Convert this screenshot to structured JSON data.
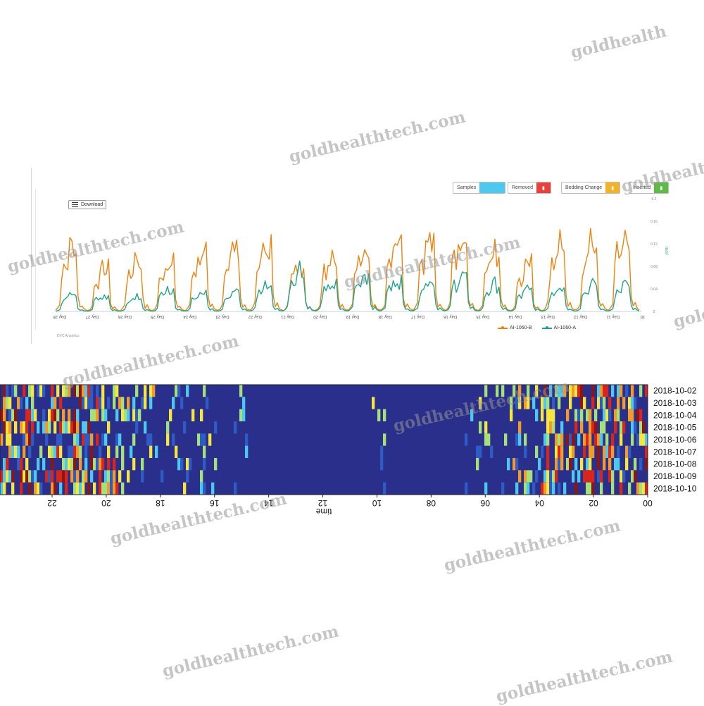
{
  "line_panel": {
    "download_label": "Download",
    "credit": "DVC Analytics",
    "legend": [
      {
        "label": "Inserted",
        "color": "#5dbb46"
      },
      {
        "label": "Bedding Change",
        "color": "#f2b32a"
      },
      {
        "label": "Removed",
        "color": "#e8413c"
      },
      {
        "label": "Samples",
        "color": "#4fc8ef"
      }
    ]
  },
  "chart_data": [
    {
      "type": "line",
      "x_categories": [
        "Day 28",
        "Day 27",
        "Day 26",
        "Day 25",
        "Day 24",
        "Day 23",
        "Day 22",
        "Day 21",
        "Day 20",
        "Day 19",
        "Day 18",
        "Day 17",
        "Day 16",
        "Day 15",
        "Day 14",
        "Day 13",
        "Day 12",
        "Day 11"
      ],
      "x_end_label": "10",
      "y_ticks": [
        "0",
        "0.04",
        "0.08",
        "0.12",
        "0.16",
        "0.2"
      ],
      "ylabel": "m/s²",
      "ylim": [
        0,
        0.2
      ],
      "series": [
        {
          "name": "AI-1060-B",
          "color": "#f0820f",
          "daily_peaks": [
            0.12,
            0.08,
            0.1,
            0.1,
            0.11,
            0.12,
            0.13,
            0.09,
            0.11,
            0.13,
            0.12,
            0.13,
            0.14,
            0.11,
            0.09,
            0.13,
            0.13,
            0.14
          ]
        },
        {
          "name": "AI-1060-A",
          "color": "#1fa58c",
          "daily_peaks": [
            0.03,
            0.03,
            0.03,
            0.04,
            0.04,
            0.04,
            0.05,
            0.08,
            0.05,
            0.07,
            0.06,
            0.06,
            0.07,
            0.05,
            0.04,
            0.05,
            0.05,
            0.05
          ]
        }
      ]
    },
    {
      "type": "heatmap",
      "xlabel": "time",
      "x_tick_labels": [
        "22",
        "20",
        "18",
        "16",
        "14",
        "12",
        "10",
        "08",
        "06",
        "04",
        "02",
        "00"
      ],
      "y_labels": [
        "2018-10-02",
        "2018-10-03",
        "2018-10-04",
        "2018-10-05",
        "2018-10-06",
        "2018-10-07",
        "2018-10-08",
        "2018-10-09",
        "2018-10-10"
      ],
      "colormap": [
        "#2a2f8c",
        "#2f5cc4",
        "#4fc8ef",
        "#a6e07a",
        "#f5e642",
        "#f29b2c",
        "#d7261e",
        "#8f1610"
      ],
      "activity_by_slot": [
        4,
        4,
        3,
        4,
        4,
        5,
        3,
        3,
        2,
        2,
        1,
        1,
        1,
        1,
        0,
        1,
        0,
        0,
        0,
        0,
        0,
        0,
        0,
        0,
        1,
        0,
        0,
        0,
        0,
        0,
        1,
        1,
        1,
        2,
        2,
        3,
        3,
        4,
        4,
        3,
        3,
        4
      ]
    }
  ],
  "watermark_text": "goldhealthtech.com",
  "watermark_short": "goldhealth"
}
